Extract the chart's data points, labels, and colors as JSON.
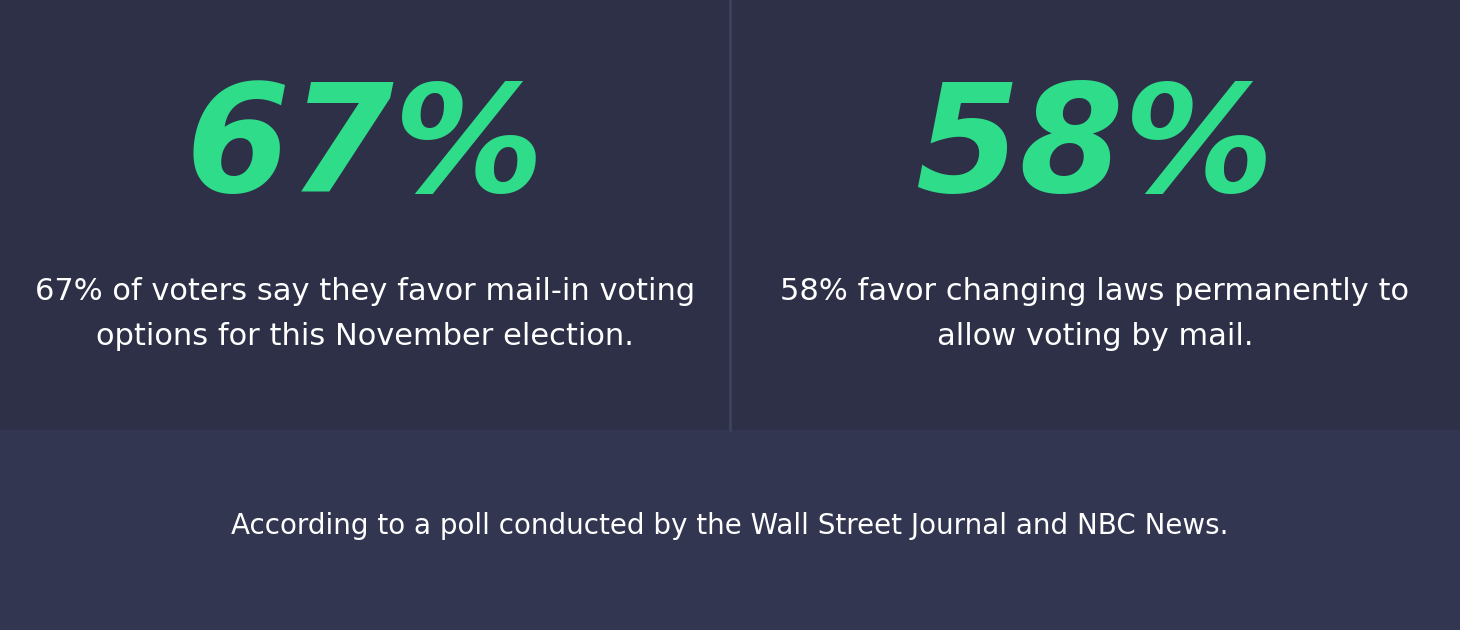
{
  "bg_color": "#2d3047",
  "panel_color": "#2d3047",
  "footer_color": "#323650",
  "green_color": "#2edc8a",
  "white_color": "#ffffff",
  "stat1": "67%",
  "stat2": "58%",
  "desc1": "67% of voters say they favor mail-in voting\noptions for this November election.",
  "desc2": "58% favor changing laws permanently to\nallow voting by mail.",
  "footer": "According to a poll conducted by the Wall Street Journal and NBC News.",
  "stat_fontsize": 108,
  "desc_fontsize": 22,
  "footer_fontsize": 20,
  "divider_color": "#3d4260",
  "fig_width": 14.6,
  "fig_height": 6.3,
  "dpi": 100
}
